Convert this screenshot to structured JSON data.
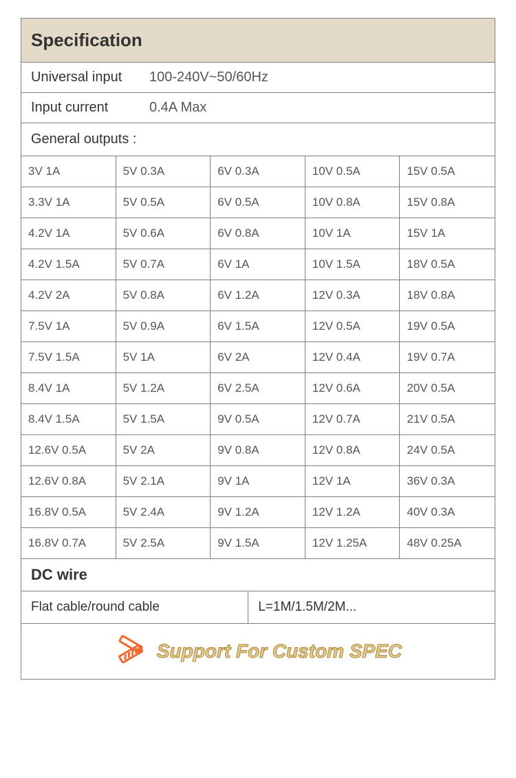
{
  "colors": {
    "header_bg": "#e3dbc7",
    "border": "#808080",
    "text_primary": "#333333",
    "text_secondary": "#555555",
    "icon": "#f26a2e",
    "banner_gradient_top": "#e8c97a",
    "banner_gradient_mid": "#c8a24a",
    "banner_stroke": "#b08a3a",
    "page_bg": "#ffffff"
  },
  "typography": {
    "font_family": "Arial",
    "header_fontsize": 26,
    "label_fontsize": 20,
    "cell_fontsize": 17,
    "subheader_fontsize": 22,
    "banner_fontsize": 28
  },
  "header": {
    "title": "Specification"
  },
  "info": [
    {
      "label": "Universal input",
      "value": "100-240V~50/60Hz"
    },
    {
      "label": "Input current",
      "value": "0.4A Max"
    }
  ],
  "general_outputs_label": "General outputs :",
  "outputs": {
    "columns": 5,
    "cells": [
      "3V 1A",
      "5V 0.3A",
      "6V 0.3A",
      "10V 0.5A",
      "15V 0.5A",
      "3.3V 1A",
      "5V 0.5A",
      "6V 0.5A",
      "10V 0.8A",
      "15V 0.8A",
      "4.2V 1A",
      "5V 0.6A",
      "6V 0.8A",
      "10V 1A",
      "15V 1A",
      "4.2V 1.5A",
      "5V 0.7A",
      "6V 1A",
      "10V 1.5A",
      "18V 0.5A",
      "4.2V 2A",
      "5V 0.8A",
      "6V 1.2A",
      "12V 0.3A",
      "18V 0.8A",
      "7.5V 1A",
      "5V 0.9A",
      "6V 1.5A",
      "12V 0.5A",
      "19V 0.5A",
      "7.5V 1.5A",
      "5V 1A",
      "6V 2A",
      "12V 0.4A",
      "19V 0.7A",
      "8.4V 1A",
      "5V 1.2A",
      "6V 2.5A",
      "12V 0.6A",
      "20V 0.5A",
      "8.4V 1.5A",
      "5V 1.5A",
      "9V 0.5A",
      "12V 0.7A",
      "21V 0.5A",
      "12.6V 0.5A",
      "5V 2A",
      "9V 0.8A",
      "12V 0.8A",
      "24V 0.5A",
      "12.6V 0.8A",
      "5V 2.1A",
      "9V 1A",
      "12V 1A",
      "36V 0.3A",
      "16.8V 0.5A",
      "5V 2.4A",
      "9V 1.2A",
      "12V 1.2A",
      "40V 0.3A",
      "16.8V 0.7A",
      "5V 2.5A",
      "9V 1.5A",
      "12V 1.25A",
      "48V 0.25A"
    ]
  },
  "dc_wire": {
    "header": "DC wire",
    "left": "Flat cable/round cable",
    "right": "L=1M/1.5M/2M..."
  },
  "banner": {
    "icon": "ruler-pencil-icon",
    "text": "Support For Custom SPEC"
  }
}
